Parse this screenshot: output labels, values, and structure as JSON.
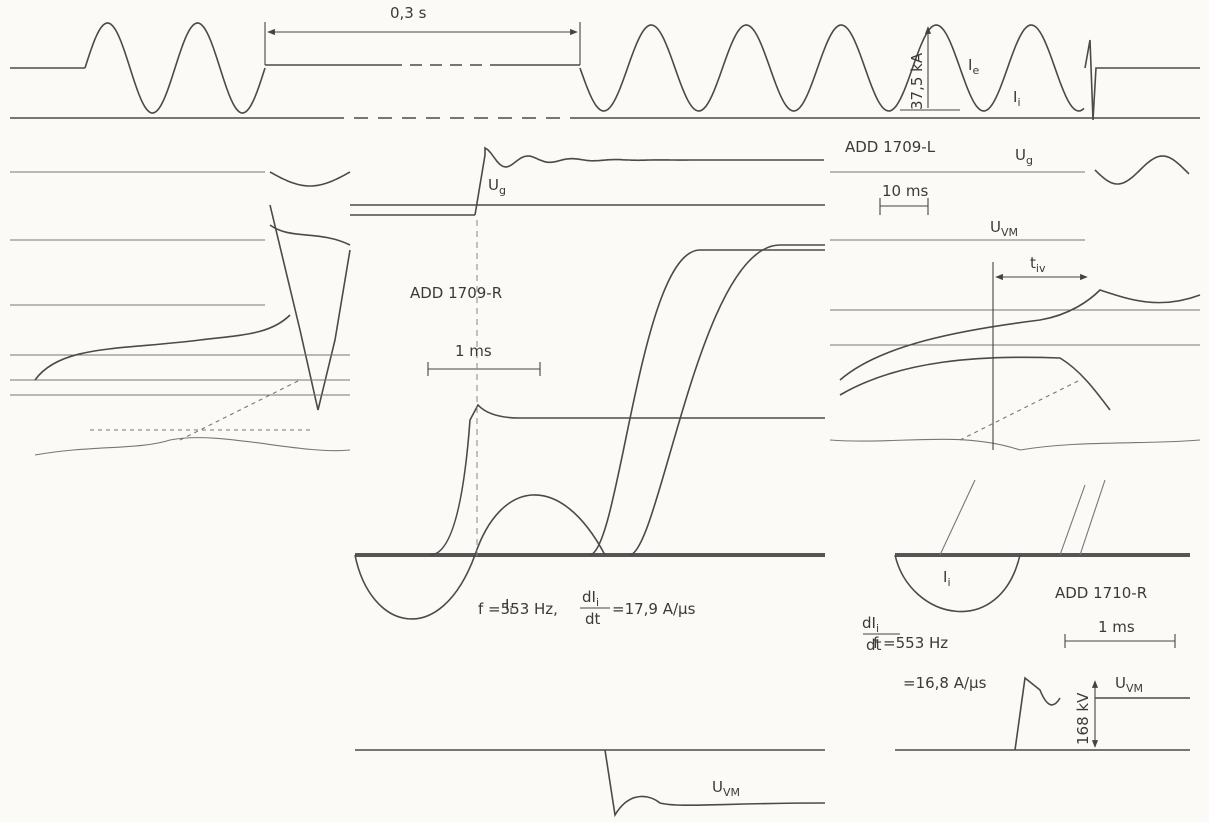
{
  "left_panel": {
    "interval": "0,3 s",
    "amplitude": "37,5 kA",
    "current_e": {
      "symbol": "I",
      "sub": "e"
    },
    "current_i": {
      "symbol": "I",
      "sub": "i"
    },
    "id": "ADD 1709-L",
    "voltage_g": {
      "symbol": "U",
      "sub": "g"
    },
    "scale": "10 ms",
    "voltage_vm": {
      "symbol": "U",
      "sub": "VM"
    },
    "time_iv": {
      "symbol": "t",
      "sub": "iv"
    }
  },
  "middle_panel": {
    "voltage_g": {
      "symbol": "U",
      "sub": "g"
    },
    "id": "ADD 1709-R",
    "scale": "1 ms",
    "current_i": {
      "symbol": "I",
      "sub": "i"
    },
    "frequency": "f =553 Hz,",
    "derivative": {
      "numerator": {
        "symbol": "dI",
        "sub": "i"
      },
      "denominator": "dt",
      "value": "=17,9 A/µs"
    },
    "voltage_vm": {
      "symbol": "U",
      "sub": "VM"
    }
  },
  "right_panel": {
    "current_i": {
      "symbol": "I",
      "sub": "i"
    },
    "id": "ADD 1710-R",
    "scale": "1 ms",
    "frequency": "f =553 Hz",
    "derivative": {
      "numerator": {
        "symbol": "dI",
        "sub": "i"
      },
      "denominator": "dt",
      "value": "=16,8 A/µs"
    },
    "voltage_vm": {
      "symbol": "U",
      "sub": "VM"
    },
    "amplitude": "168 kV"
  }
}
